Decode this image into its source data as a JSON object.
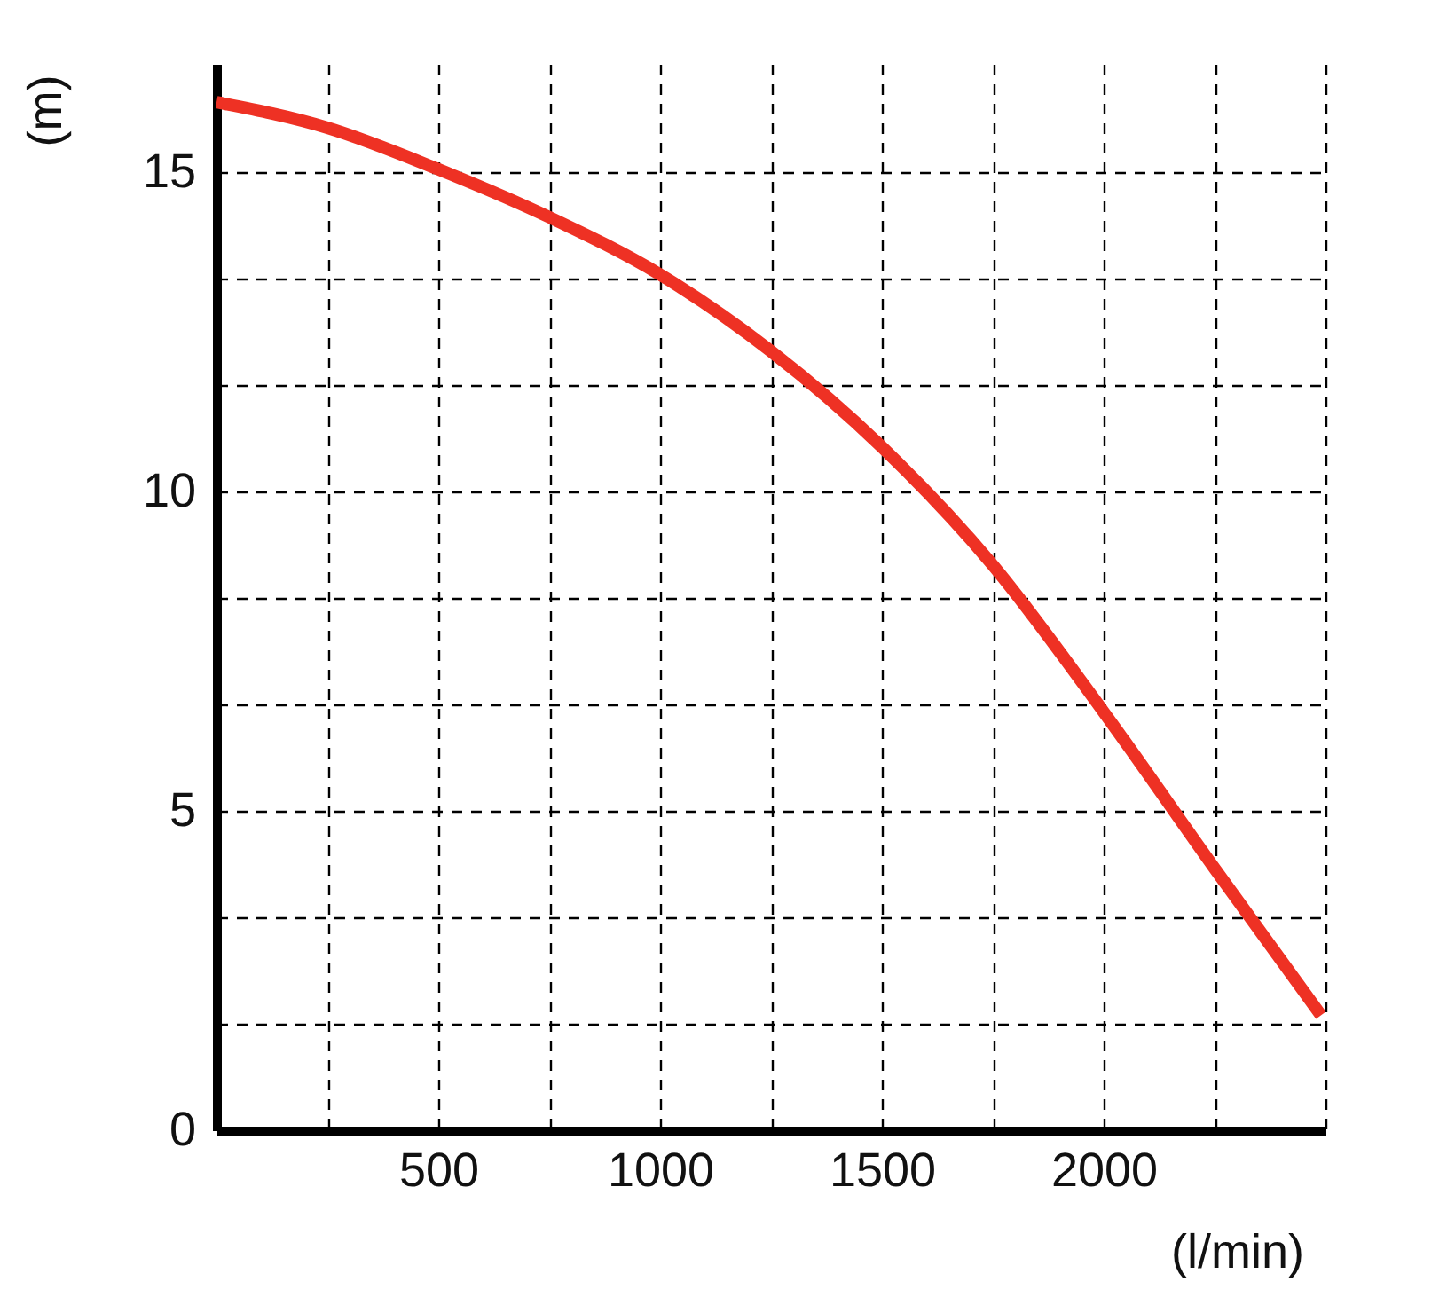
{
  "chart_data": {
    "type": "line",
    "xlabel": "(l/min)",
    "ylabel": "(m)",
    "x": [
      0,
      250,
      500,
      750,
      1000,
      1250,
      1500,
      1750,
      2000,
      2250,
      2490
    ],
    "series": [
      {
        "color": "#ee3124",
        "values": [
          16.1,
          15.7,
          15.05,
          14.3,
          13.4,
          12.2,
          10.7,
          8.85,
          6.55,
          4.1,
          1.8
        ]
      }
    ],
    "xlim": [
      0,
      2500
    ],
    "ylim": [
      0,
      16.7
    ],
    "xticks": [
      {
        "value": 250,
        "label": null
      },
      500,
      {
        "value": 750,
        "label": null
      },
      1000,
      {
        "value": 1250,
        "label": null
      },
      1500,
      {
        "value": 1750,
        "label": null
      },
      2000,
      {
        "value": 2250,
        "label": null
      },
      {
        "value": 2500,
        "label": null
      }
    ],
    "yticks": [
      0,
      {
        "value": 1.667,
        "label": null
      },
      {
        "value": 3.333,
        "label": null
      },
      5,
      {
        "value": 6.667,
        "label": null
      },
      {
        "value": 8.333,
        "label": null
      },
      10,
      {
        "value": 11.667,
        "label": null
      },
      {
        "value": 13.333,
        "label": null
      },
      15
    ],
    "grid": true,
    "marker": "none",
    "line_style": "solid"
  }
}
